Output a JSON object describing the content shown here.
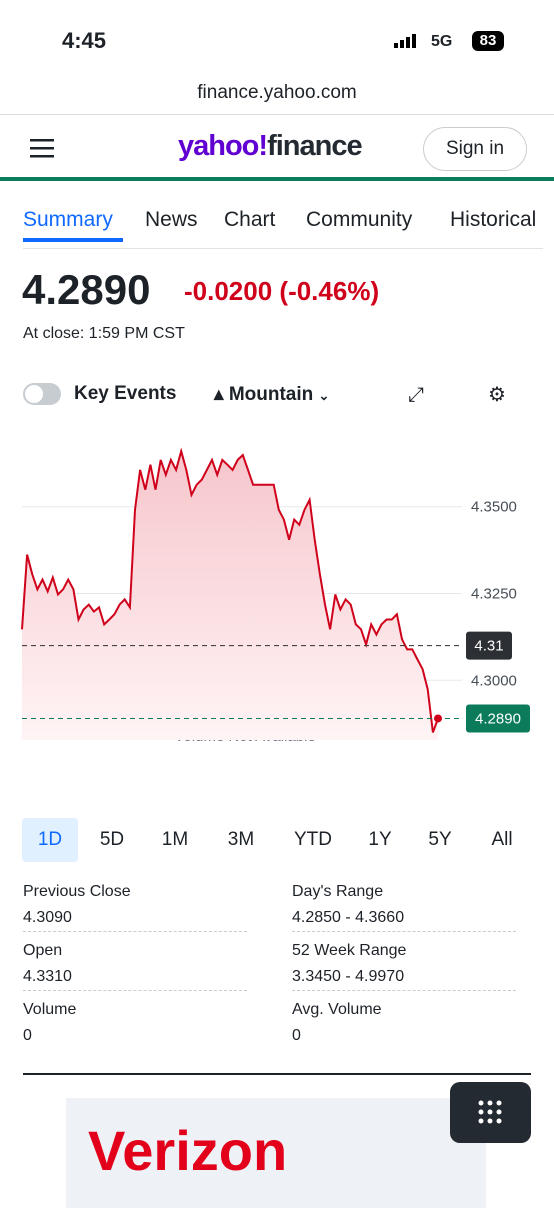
{
  "status_bar": {
    "time": "4:45",
    "network": "5G",
    "battery": "83"
  },
  "browser": {
    "url": "finance.yahoo.com"
  },
  "header": {
    "logo_brand": "yahoo!",
    "logo_product": "finance",
    "sign_in": "Sign in"
  },
  "tabs": [
    "Summary",
    "News",
    "Chart",
    "Community",
    "Historical"
  ],
  "quote": {
    "price": "4.2890",
    "change": "-0.0200 (-0.46%)",
    "close_time": "At close: 1:59 PM CST"
  },
  "chart_controls": {
    "key_events": "Key Events",
    "chart_type": "Mountain"
  },
  "chart_data": {
    "type": "area",
    "color": "#d0021b",
    "values": [
      4.3147,
      4.3362,
      4.3305,
      4.3262,
      4.329,
      4.3256,
      4.3296,
      4.3247,
      4.3262,
      4.329,
      4.3262,
      4.3175,
      4.3204,
      4.3218,
      4.3198,
      4.321,
      4.3161,
      4.3175,
      4.319,
      4.3218,
      4.3233,
      4.321,
      4.3491,
      4.3606,
      4.3549,
      4.3621,
      4.3549,
      4.3635,
      4.3592,
      4.3635,
      4.3606,
      4.366,
      4.3606,
      4.3534,
      4.3563,
      4.3578,
      4.3606,
      4.3635,
      4.3592,
      4.3635,
      4.3621,
      4.3606,
      4.3635,
      4.3649,
      4.3606,
      4.3563,
      4.3563,
      4.3563,
      4.3563,
      4.3563,
      4.3491,
      4.3463,
      4.3405,
      4.3463,
      4.3448,
      4.3491,
      4.352,
      4.3405,
      4.3305,
      4.3218,
      4.3147,
      4.3247,
      4.3204,
      4.3233,
      4.3218,
      4.3161,
      4.3147,
      4.3103,
      4.3161,
      4.3132,
      4.3161,
      4.3175,
      4.3175,
      4.319,
      4.3118,
      4.3089,
      4.3089,
      4.306,
      4.3032,
      4.2974,
      4.285,
      4.289
    ],
    "ylim": [
      4.2828,
      4.3721
    ],
    "yticks": [
      {
        "value": 4.35,
        "label": "4.3500"
      },
      {
        "value": 4.325,
        "label": "4.3250"
      },
      {
        "value": 4.3,
        "label": "4.3000"
      }
    ],
    "grid": true,
    "reference_lines": [
      {
        "value": 4.31,
        "label": "4.31",
        "color": "#2c2f33"
      },
      {
        "value": 4.289,
        "label": "4.2890",
        "color": "#0b7b5b"
      }
    ],
    "annotation": "Volume Not Available"
  },
  "ranges": [
    "1D",
    "5D",
    "1M",
    "3M",
    "YTD",
    "1Y",
    "5Y",
    "All"
  ],
  "stats": [
    {
      "label": "Previous Close",
      "value": "4.3090"
    },
    {
      "label": "Day's Range",
      "value": "4.2850 - 4.3660"
    },
    {
      "label": "Open",
      "value": "4.3310"
    },
    {
      "label": "52 Week Range",
      "value": "3.3450 - 4.9970"
    },
    {
      "label": "Volume",
      "value": "0"
    },
    {
      "label": "Avg. Volume",
      "value": "0"
    }
  ],
  "ad": {
    "text": "Verizon"
  }
}
